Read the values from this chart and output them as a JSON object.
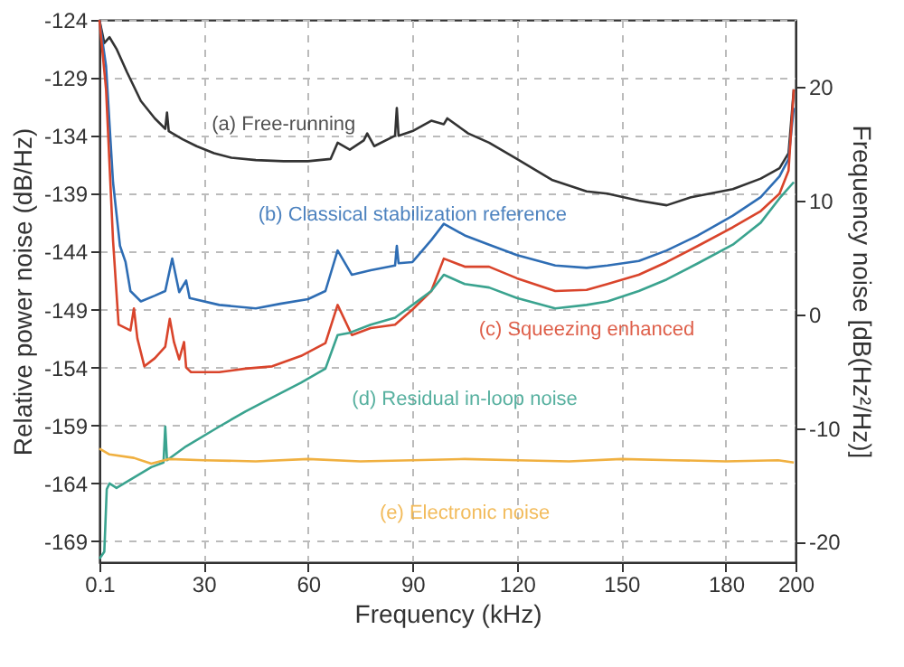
{
  "chart_data": {
    "type": "line",
    "xlabel": "Frequency (kHz)",
    "ylabel": "Relative power noise (dB/Hz)",
    "y2label": "Frequency noise [dB(Hz²/Hz)]",
    "xlim": [
      0.1,
      200
    ],
    "xticks": [
      0.1,
      30,
      60,
      90,
      120,
      150,
      180,
      200
    ],
    "ylim": [
      -170.8,
      -124
    ],
    "yticks": [
      -124,
      -129,
      -134,
      -139,
      -144,
      -149,
      -154,
      -159,
      -164,
      -169
    ],
    "y2lim": [
      -21.8,
      25.9
    ],
    "y2ticks": [
      -20,
      -10,
      0,
      10,
      20
    ],
    "grid": true,
    "series": [
      {
        "name": "(a) Free-running",
        "color": "#333333",
        "x": [
          0.1,
          1.5,
          3,
          5,
          8,
          12,
          16,
          19,
          19.5,
          20,
          24,
          28,
          33,
          38,
          45,
          53,
          60,
          66.5,
          68.5,
          72,
          76,
          77,
          79,
          85,
          85.5,
          86,
          90,
          95.4,
          99,
          100,
          106,
          112,
          120,
          130,
          140,
          146,
          155,
          163,
          170,
          182,
          190,
          195.4,
          198,
          199.5
        ],
        "values": [
          -124,
          -126,
          -125.5,
          -126.5,
          -128.5,
          -131,
          -132.5,
          -133.4,
          -132,
          -133.6,
          -134.3,
          -134.9,
          -135.5,
          -135.9,
          -136.1,
          -136.2,
          -136.2,
          -136,
          -134.6,
          -135.2,
          -134.4,
          -133.8,
          -134.9,
          -134,
          -131.6,
          -134,
          -133.6,
          -132.7,
          -133,
          -132.5,
          -133.8,
          -134.6,
          -136,
          -137.8,
          -138.8,
          -139,
          -139.6,
          -140,
          -139.3,
          -138.6,
          -137.7,
          -136.8,
          -135.5,
          -130
        ]
      },
      {
        "name": "(b) Classical stabilization reference",
        "color": "#2e6db4",
        "x": [
          0.1,
          2,
          4,
          6,
          7.6,
          9,
          12,
          16,
          19,
          21,
          23,
          25,
          26,
          34.5,
          45,
          52,
          60,
          65,
          68.5,
          72.6,
          78,
          85,
          85.5,
          86,
          90,
          95.4,
          99,
          105,
          112,
          120,
          131,
          140,
          146,
          155,
          163,
          172,
          182,
          190,
          195.4,
          198,
          199.5
        ],
        "values": [
          -124,
          -128,
          -138,
          -143.5,
          -144.9,
          -147.4,
          -148.3,
          -147.8,
          -147.4,
          -144.6,
          -147.5,
          -146.5,
          -148,
          -148.6,
          -148.9,
          -148.5,
          -148.1,
          -147.4,
          -143.9,
          -146,
          -145.6,
          -145.2,
          -143.5,
          -145,
          -144.9,
          -143,
          -141.6,
          -142.6,
          -143.4,
          -144.3,
          -145.2,
          -145.4,
          -145.2,
          -144.8,
          -143.9,
          -142.6,
          -140.9,
          -139.3,
          -137.5,
          -136,
          -131.6
        ]
      },
      {
        "name": "(c) Squeezing enhanced",
        "color": "#d9442b",
        "x": [
          0.1,
          2,
          4,
          5.6,
          9,
          10,
          11,
          13,
          16,
          19,
          20.3,
          21.5,
          23,
          24.4,
          25,
          26.4,
          34.5,
          42,
          49.7,
          58,
          65,
          68.5,
          72.6,
          78,
          85,
          90,
          95.4,
          99,
          105,
          112,
          120,
          131,
          140,
          146,
          155,
          163,
          172,
          182,
          190,
          195.4,
          198,
          199.5
        ],
        "values": [
          -124,
          -130,
          -143,
          -150.3,
          -150.8,
          -148.9,
          -151.5,
          -153.9,
          -153.2,
          -152.2,
          -149.8,
          -151.8,
          -153.3,
          -151.8,
          -154,
          -154.4,
          -154.4,
          -154.1,
          -153.9,
          -153,
          -151.9,
          -148.6,
          -151.2,
          -150.6,
          -150.3,
          -149,
          -147.4,
          -144.6,
          -145.3,
          -145.3,
          -146.3,
          -147.4,
          -147.3,
          -146.8,
          -146,
          -144.9,
          -143.5,
          -141.9,
          -140.5,
          -139,
          -137,
          -130
        ]
      },
      {
        "name": "(d) Residual in-loop noise",
        "color": "#3aa38f",
        "x": [
          0.1,
          1.5,
          2.2,
          3,
          5,
          10,
          15,
          18.5,
          19,
          19.5,
          25,
          34.5,
          42,
          49.7,
          58,
          65,
          68.5,
          72,
          78,
          85,
          90,
          95.4,
          99,
          105,
          112,
          120,
          131,
          140,
          146,
          155,
          163,
          172,
          182,
          190,
          195.4,
          199.5
        ],
        "values": [
          -170.5,
          -169.9,
          -164.5,
          -164,
          -164.4,
          -163.5,
          -162.6,
          -162.2,
          -159.1,
          -162,
          -160.8,
          -159.1,
          -157.8,
          -156.6,
          -155.3,
          -154.1,
          -151.2,
          -151,
          -150.3,
          -149.7,
          -148.6,
          -147.4,
          -146,
          -146.8,
          -147.1,
          -148,
          -148.9,
          -148.6,
          -148.3,
          -147.4,
          -146.4,
          -145,
          -143.4,
          -141.5,
          -139.4,
          -138
        ]
      },
      {
        "name": "(e) Electronic noise",
        "color": "#f0b040",
        "x": [
          0.1,
          3,
          10,
          15,
          20,
          30,
          45,
          60,
          75,
          90,
          105,
          120,
          135,
          150,
          165,
          180,
          195,
          199.5
        ],
        "values": [
          -161,
          -161.5,
          -161.8,
          -162.3,
          -161.9,
          -162,
          -162.1,
          -161.9,
          -162.1,
          -162,
          -161.9,
          -162,
          -162.1,
          -161.9,
          -162,
          -162.1,
          -162,
          -162.2
        ]
      }
    ]
  }
}
